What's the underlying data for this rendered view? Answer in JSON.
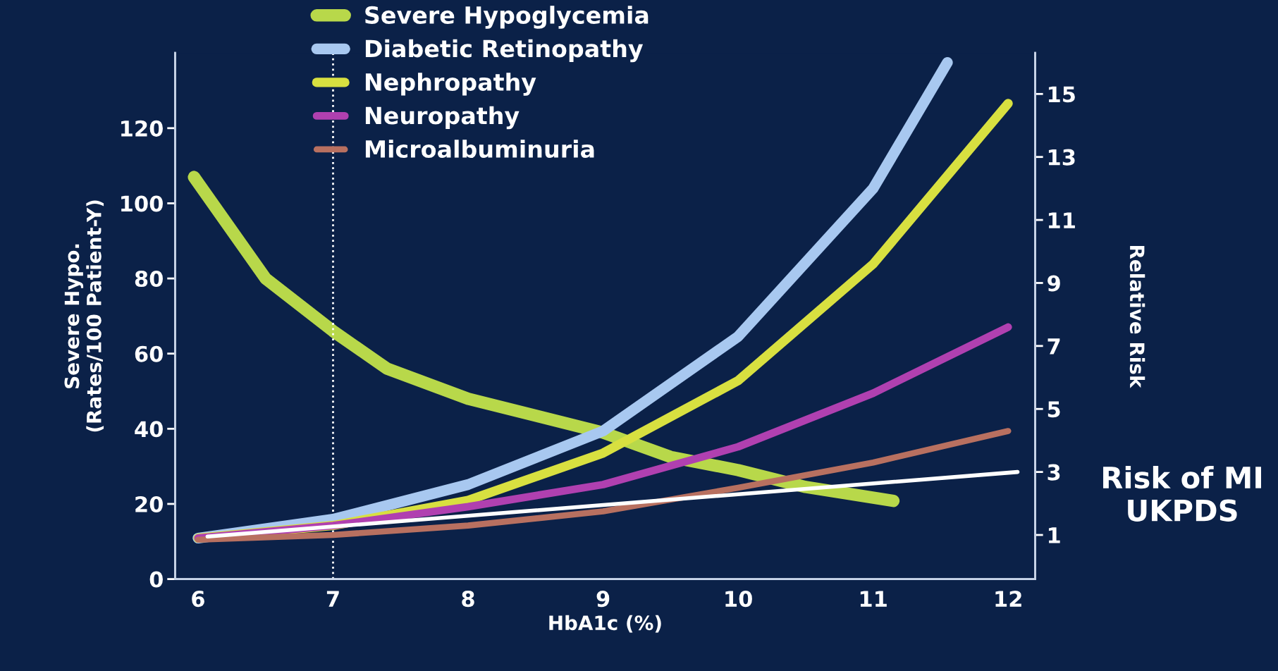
{
  "chart_data": {
    "type": "line",
    "xlabel": "HbA1c (%)",
    "ylabel": "Severe Hypo.\n(Rates/100 Patient-Y)",
    "y2label": "Relative Risk",
    "xlim": [
      5.83,
      12.2
    ],
    "xticks": [
      6,
      7,
      8,
      9,
      10,
      11,
      12
    ],
    "ylim": [
      0,
      140
    ],
    "yticks": [
      0,
      20,
      40,
      60,
      80,
      100,
      120
    ],
    "y2lim": [
      -0.4,
      16.3
    ],
    "y2ticks": [
      1,
      3,
      5,
      7,
      9,
      11,
      13,
      15
    ],
    "legend": "top left",
    "grid": false,
    "marker": "none",
    "line_style": "solid",
    "series": [
      {
        "name": "Severe Hypoglycemia",
        "color": "#b8d84a",
        "x": [
          5.97,
          6.5,
          7,
          7.4,
          8,
          9,
          9.5,
          10,
          10.5,
          11.15
        ],
        "values": [
          107,
          80,
          66,
          56,
          48,
          39,
          32.5,
          29,
          24.5,
          20.8
        ]
      },
      {
        "name": "Diabetic Retinopathy",
        "color": "#a8c8f0",
        "axis": "y2",
        "x": [
          6,
          7,
          8,
          9,
          10,
          11,
          11.55
        ],
        "values": [
          0.9,
          1.5,
          2.6,
          4.3,
          7.3,
          12.0,
          16.0
        ]
      },
      {
        "name": "Nephropathy",
        "color": "#d8e040",
        "axis": "y2",
        "x": [
          6,
          7,
          8,
          9,
          10,
          11,
          12
        ],
        "values": [
          0.9,
          1.3,
          2.1,
          3.6,
          5.9,
          9.6,
          14.7
        ]
      },
      {
        "name": "Neuropathy",
        "color": "#b040b0",
        "axis": "y2",
        "x": [
          6,
          7,
          8,
          9,
          10,
          11,
          12
        ],
        "values": [
          0.9,
          1.3,
          1.9,
          2.6,
          3.8,
          5.5,
          7.6
        ]
      },
      {
        "name": "Microalbuminuria",
        "color": "#b87060",
        "axis": "y2",
        "x": [
          6,
          7,
          8,
          9,
          10,
          11,
          12
        ],
        "values": [
          0.85,
          1.0,
          1.3,
          1.75,
          2.5,
          3.3,
          4.3
        ]
      },
      {
        "color": "#ffffff",
        "axis": "y2",
        "x": [
          6.07,
          12.07
        ],
        "values": [
          0.95,
          3.0
        ]
      }
    ],
    "ref_lines": [
      {
        "axis": "x",
        "value": 7,
        "color": "#ffffff",
        "line_style": "dotted"
      }
    ],
    "annotations": [
      "Risk of MI\nUKPDS"
    ]
  }
}
